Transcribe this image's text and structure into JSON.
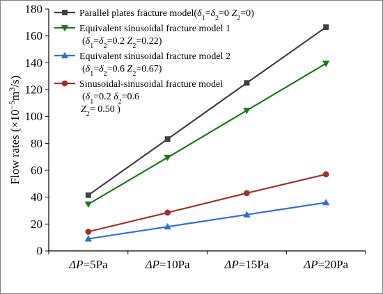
{
  "chart_data": {
    "type": "line",
    "categories": [
      "ΔP=5Pa",
      "ΔP=10Pa",
      "ΔP=15Pa",
      "ΔP=20Pa"
    ],
    "x_tick_parts": [
      {
        "sym": "ΔP",
        "rest": "=5Pa"
      },
      {
        "sym": "ΔP",
        "rest": "=10Pa"
      },
      {
        "sym": "ΔP",
        "rest": "=15Pa"
      },
      {
        "sym": "ΔP",
        "rest": "=20Pa"
      }
    ],
    "ylim": [
      0,
      180
    ],
    "yticks": [
      0,
      20,
      40,
      60,
      80,
      100,
      120,
      140,
      160,
      180
    ],
    "ylabel": "Flow rates (×10⁻⁵m³/s)",
    "ylabel_parts": {
      "pre": "Flow rates (×10",
      "sup1": "−5",
      "mid": "m",
      "sup2": "3",
      "post": "/s)"
    },
    "grid": false,
    "legend_position": "top-left",
    "series": [
      {
        "name": "Parallel plates fracture model(δ1=δ2=0 Z2=0)",
        "values": [
          41.5,
          83.2,
          125.0,
          166.5
        ],
        "color": "#404040",
        "marker": "square",
        "legend_lines": [
          [
            {
              "t": "Parallel plates fracture model("
            },
            {
              "t": "δ",
              "i": true
            },
            {
              "t": "1",
              "sub": true
            },
            {
              "t": "="
            },
            {
              "t": "δ",
              "i": true
            },
            {
              "t": "2",
              "sub": true
            },
            {
              "t": "=0  "
            },
            {
              "t": "Z",
              "i": true
            },
            {
              "t": "2",
              "sub": true
            },
            {
              "t": "=0)"
            }
          ]
        ]
      },
      {
        "name": "Equivalent sinusoidal fracture model 1 (δ1=δ2=0.2 Z2=0.22)",
        "values": [
          34.8,
          69.5,
          104.5,
          139.5
        ],
        "color": "#1a7a1a",
        "marker": "triangle-down",
        "legend_lines": [
          [
            {
              "t": "Equivalent sinusoidal fracture model 1"
            }
          ],
          [
            {
              "t": "("
            },
            {
              "t": "δ",
              "i": true
            },
            {
              "t": "1",
              "sub": true
            },
            {
              "t": "="
            },
            {
              "t": "δ",
              "i": true
            },
            {
              "t": "2",
              "sub": true
            },
            {
              "t": "=0.2   "
            },
            {
              "t": "Z",
              "i": true
            },
            {
              "t": "2",
              "sub": true
            },
            {
              "t": "=0.22)"
            }
          ]
        ]
      },
      {
        "name": "Equivalent sinusoidal fracture model 2 (δ1=δ2=0.6 Z2=0.67)",
        "values": [
          9.0,
          18.0,
          27.0,
          36.0
        ],
        "color": "#2f6fd6",
        "marker": "triangle-up",
        "legend_lines": [
          [
            {
              "t": "Equivalent sinusoidal fracture model 2"
            }
          ],
          [
            {
              "t": "("
            },
            {
              "t": "δ",
              "i": true
            },
            {
              "t": "1",
              "sub": true
            },
            {
              "t": "="
            },
            {
              "t": "δ",
              "i": true
            },
            {
              "t": "2",
              "sub": true
            },
            {
              "t": "=0.6  "
            },
            {
              "t": "Z",
              "i": true
            },
            {
              "t": "2",
              "sub": true
            },
            {
              "t": "=0.67)"
            }
          ]
        ]
      },
      {
        "name": "Sinusoidal-sinusoidal fracture model (δ1=0.2 δ2=0.6 Z2= 0.50 )",
        "values": [
          14.3,
          28.5,
          43.0,
          57.0
        ],
        "color": "#a0322a",
        "marker": "circle",
        "legend_lines": [
          [
            {
              "t": "Sinusoidal-sinusoidal fracture model"
            }
          ],
          [
            {
              "t": "("
            },
            {
              "t": "δ",
              "i": true
            },
            {
              "t": "1",
              "sub": true
            },
            {
              "t": "=0.2  "
            },
            {
              "t": "δ",
              "i": true
            },
            {
              "t": "2",
              "sub": true
            },
            {
              "t": "=0.6"
            }
          ],
          [
            {
              "t": "Z",
              "i": true
            },
            {
              "t": "2",
              "sub": true
            },
            {
              "t": "= 0.50 )"
            }
          ]
        ]
      }
    ]
  }
}
